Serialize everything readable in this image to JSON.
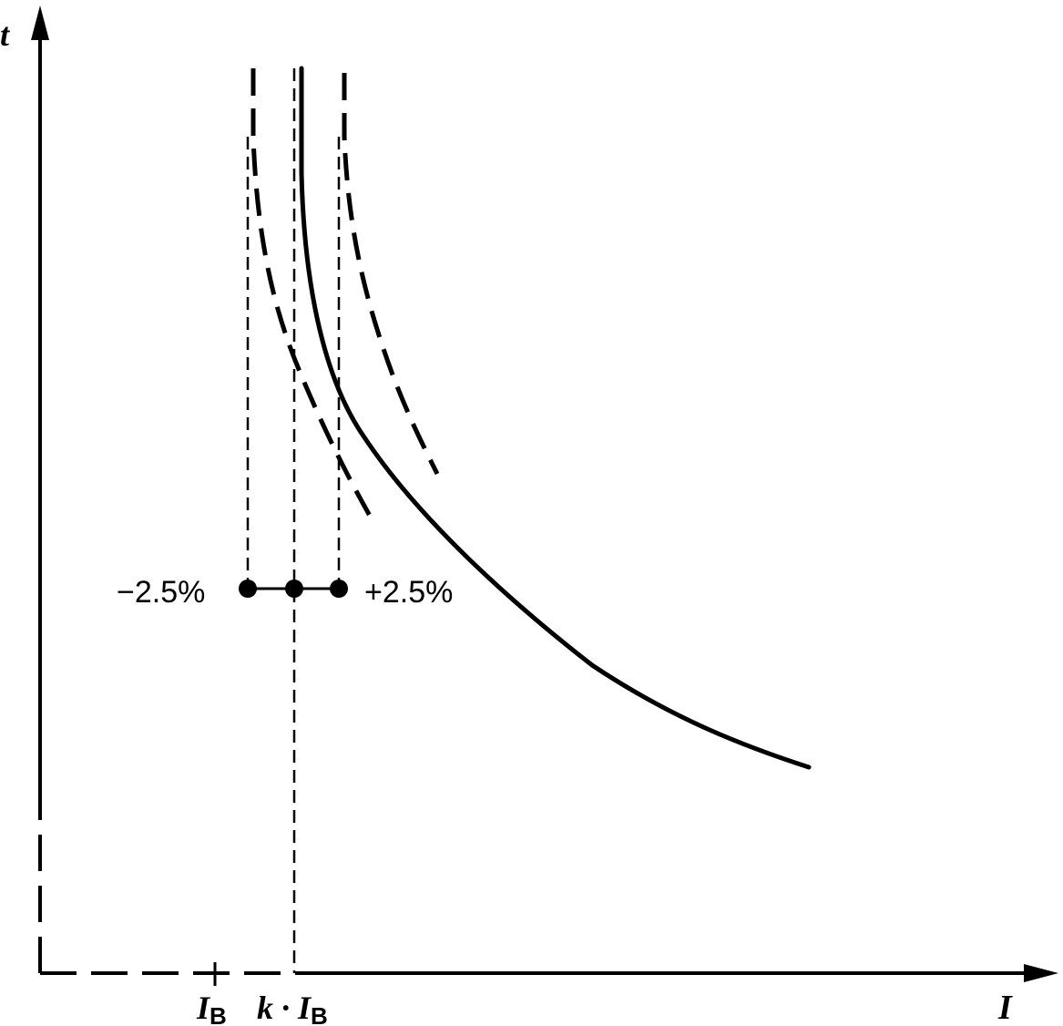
{
  "axes": {
    "y_label": "t",
    "x_label": "I"
  },
  "ticks": {
    "ib_main": "I",
    "ib_sub": "B",
    "kib_prefix": "k · ",
    "kib_main": "I",
    "kib_sub": "B"
  },
  "tolerance": {
    "minus_label": "−2.5%",
    "plus_label": "+2.5%"
  },
  "colors": {
    "ink": "#000000",
    "background": "#ffffff"
  }
}
